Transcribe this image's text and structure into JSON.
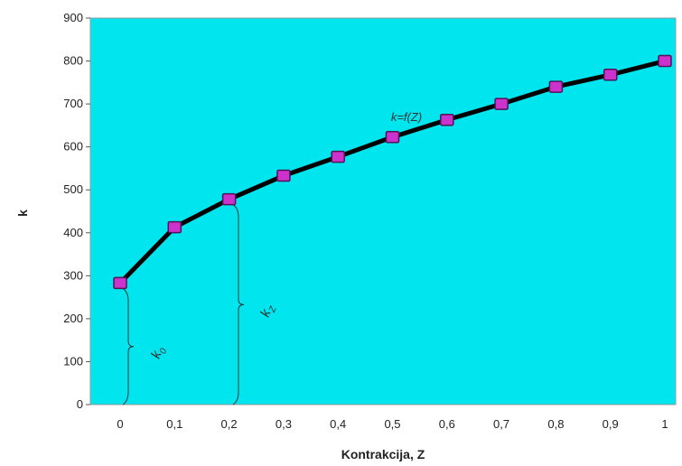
{
  "chart_data": {
    "type": "line",
    "title": "",
    "xlabel": "Kontrakcija, Z",
    "ylabel": "k",
    "x": [
      "0",
      "0,1",
      "0,2",
      "0,3",
      "0,4",
      "0,5",
      "0,6",
      "0,7",
      "0,8",
      "0,9",
      "1"
    ],
    "series": [
      {
        "values": [
          283,
          413,
          478,
          533,
          577,
          623,
          663,
          700,
          740,
          768,
          800
        ]
      }
    ],
    "ylim": [
      0,
      900
    ],
    "yticks": [
      "0",
      "100",
      "200",
      "300",
      "400",
      "500",
      "600",
      "700",
      "800",
      "900"
    ],
    "grid": false,
    "legend": "none",
    "colors": {
      "plot_background": "#00e5ee",
      "line": "#000000",
      "marker_fill": "#cc33cc",
      "marker_stroke": "#551155"
    },
    "annotations": {
      "curve_label": "k=f(Z)",
      "k0_main": "k",
      "k0_sub": "0",
      "kz_main": "k",
      "kz_sub": "Z"
    }
  }
}
